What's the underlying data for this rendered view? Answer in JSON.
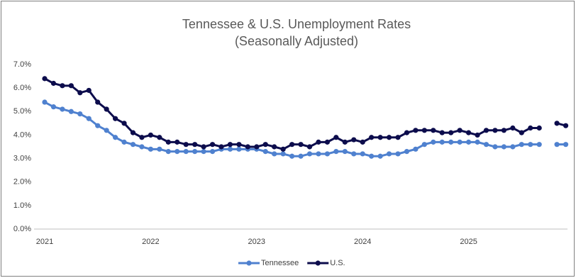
{
  "chart_data": {
    "type": "line",
    "title": "Tennessee & U.S. Unemployment Rates",
    "subtitle": "(Seasonally Adjusted)",
    "categories": [
      "2021",
      null,
      null,
      null,
      null,
      null,
      null,
      null,
      null,
      null,
      null,
      null,
      "2022",
      null,
      null,
      null,
      null,
      null,
      null,
      null,
      null,
      null,
      null,
      null,
      "2023",
      null,
      null,
      null,
      null,
      null,
      null,
      null,
      null,
      null,
      null,
      null,
      "2024",
      null,
      null,
      null,
      null,
      null,
      null,
      null,
      null,
      null,
      null,
      null,
      "2025",
      null,
      null,
      null,
      null,
      null,
      null,
      null,
      null,
      null,
      null,
      null
    ],
    "series": [
      {
        "name": "Tennessee",
        "color": "#4f81cf",
        "values": [
          5.4,
          5.2,
          5.1,
          5.0,
          4.9,
          4.7,
          4.4,
          4.2,
          3.9,
          3.7,
          3.6,
          3.5,
          3.4,
          3.4,
          3.3,
          3.3,
          3.3,
          3.3,
          3.3,
          3.3,
          3.4,
          3.4,
          3.4,
          3.4,
          3.4,
          3.3,
          3.2,
          3.2,
          3.1,
          3.1,
          3.2,
          3.2,
          3.2,
          3.3,
          3.3,
          3.2,
          3.2,
          3.1,
          3.1,
          3.2,
          3.2,
          3.3,
          3.4,
          3.6,
          3.7,
          3.7,
          3.7,
          3.7,
          3.7,
          3.7,
          3.6,
          3.5,
          3.5,
          3.5,
          3.6,
          3.6,
          3.6,
          null,
          3.6,
          3.6
        ]
      },
      {
        "name": "U.S.",
        "color": "#0c0c4c",
        "values": [
          6.4,
          6.2,
          6.1,
          6.1,
          5.8,
          5.9,
          5.4,
          5.1,
          4.7,
          4.5,
          4.1,
          3.9,
          4.0,
          3.9,
          3.7,
          3.7,
          3.6,
          3.6,
          3.5,
          3.6,
          3.5,
          3.6,
          3.6,
          3.5,
          3.5,
          3.6,
          3.5,
          3.4,
          3.6,
          3.6,
          3.5,
          3.7,
          3.7,
          3.9,
          3.7,
          3.8,
          3.7,
          3.9,
          3.9,
          3.9,
          3.9,
          4.1,
          4.2,
          4.2,
          4.2,
          4.1,
          4.1,
          4.2,
          4.1,
          4.0,
          4.2,
          4.2,
          4.2,
          4.3,
          4.1,
          4.3,
          4.3,
          null,
          4.5,
          4.4
        ]
      }
    ],
    "ylim": [
      0,
      7
    ],
    "yticks": [
      {
        "value": 0,
        "label": "0.0%"
      },
      {
        "value": 1,
        "label": "1.0%"
      },
      {
        "value": 2,
        "label": "2.0%"
      },
      {
        "value": 3,
        "label": "3.0%"
      },
      {
        "value": 4,
        "label": "4.0%"
      },
      {
        "value": 5,
        "label": "5.0%"
      },
      {
        "value": 6,
        "label": "6.0%"
      },
      {
        "value": 7,
        "label": "7.0%"
      }
    ],
    "grid": false,
    "legend": "bottom"
  }
}
